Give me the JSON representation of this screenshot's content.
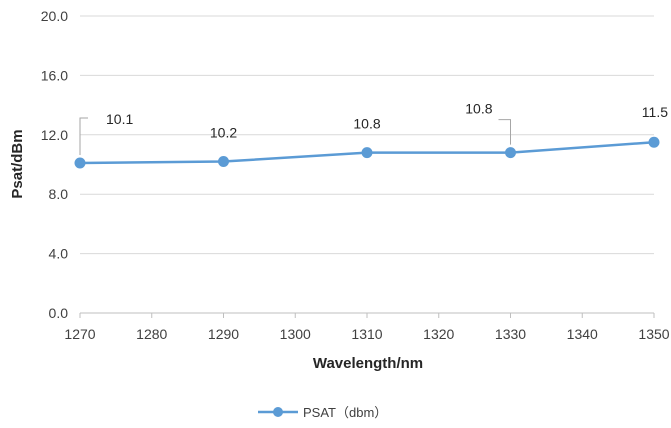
{
  "chart_data": {
    "type": "line",
    "title": "",
    "xlabel": "Wavelength/nm",
    "ylabel": "Psat/dBm",
    "xlim": [
      1270,
      1350
    ],
    "ylim": [
      0,
      20
    ],
    "x_ticks": [
      "1270",
      "1280",
      "1290",
      "1300",
      "1310",
      "1320",
      "1330",
      "1340",
      "1350"
    ],
    "y_ticks": [
      "0.0",
      "4.0",
      "8.0",
      "12.0",
      "16.0",
      "20.0"
    ],
    "grid": "horizontal",
    "legend_position": "bottom",
    "series": [
      {
        "name": "PSAT（dbm）",
        "color": "#5b9bd5",
        "x": [
          1270,
          1290,
          1310,
          1330,
          1350
        ],
        "values": [
          10.1,
          10.2,
          10.8,
          10.8,
          11.5
        ],
        "labels": [
          "10.1",
          "10.2",
          "10.8",
          "10.8",
          "11.5"
        ]
      }
    ]
  }
}
